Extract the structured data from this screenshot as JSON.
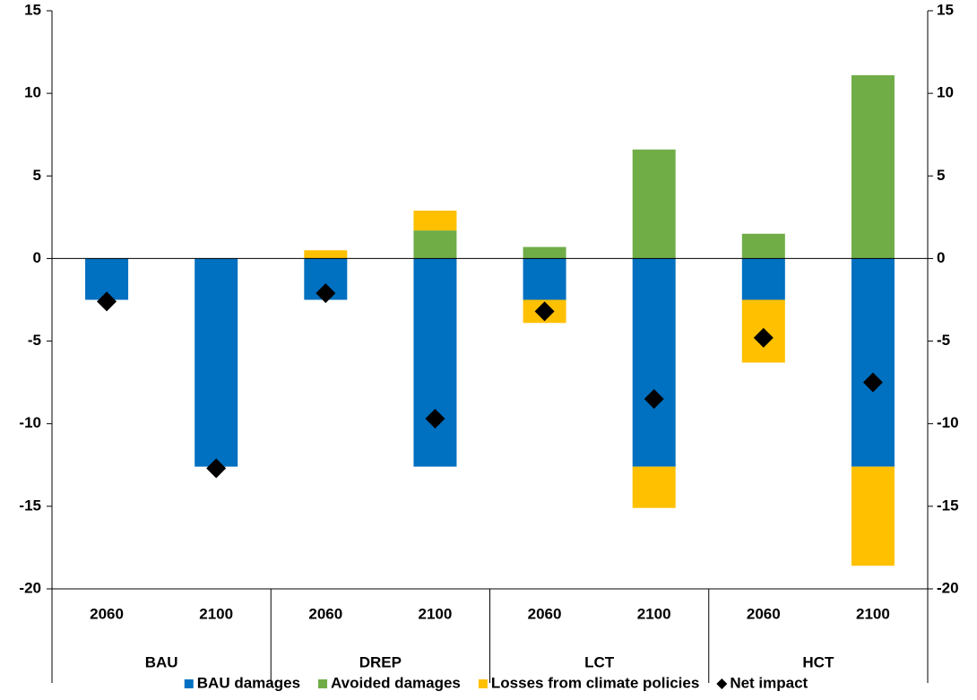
{
  "chart_data": {
    "type": "bar",
    "stacked": true,
    "categories": [
      "2060",
      "2100",
      "2060",
      "2100",
      "2060",
      "2100",
      "2060",
      "2100"
    ],
    "category_groups": [
      "BAU",
      "DREP",
      "LCT",
      "HCT"
    ],
    "series": [
      {
        "name": "BAU damages",
        "type": "bar",
        "color": "#0070c0",
        "values": [
          -2.5,
          -12.6,
          -2.5,
          -12.6,
          -2.5,
          -12.6,
          -2.5,
          -12.6
        ]
      },
      {
        "name": "Avoided damages",
        "type": "bar",
        "color": "#70ad47",
        "values": [
          0,
          0,
          0,
          1.7,
          0.7,
          6.6,
          1.5,
          11.1
        ]
      },
      {
        "name": "Losses from climate policies",
        "type": "bar",
        "color": "#ffc000",
        "values": [
          0,
          0,
          0.5,
          1.2,
          -1.4,
          -2.5,
          -3.8,
          -6.0
        ]
      },
      {
        "name": "Net impact",
        "type": "scatter",
        "marker": "diamond",
        "color": "#000000",
        "values": [
          -2.6,
          -12.7,
          -2.1,
          -9.7,
          -3.2,
          -8.5,
          -4.8,
          -7.5
        ]
      }
    ],
    "ylim": [
      -20,
      15
    ],
    "yticks": [
      -20,
      -15,
      -10,
      -5,
      0,
      5,
      10,
      15
    ],
    "y2lim": [
      -20,
      15
    ],
    "y2ticks": [
      -20,
      -15,
      -10,
      -5,
      0,
      5,
      10,
      15
    ],
    "legend": "bottom"
  }
}
